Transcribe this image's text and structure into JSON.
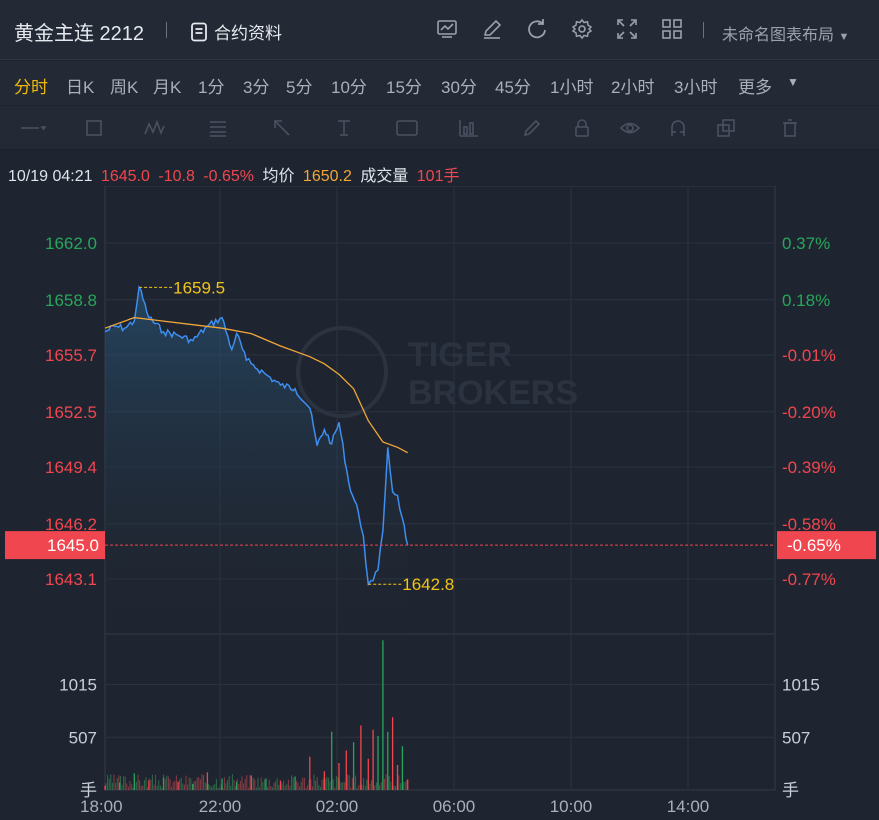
{
  "header": {
    "title": "黄金主连 2212",
    "contract_label": "合约资料",
    "layout_label": "未命名图表布局",
    "icons": [
      "chart-template-icon",
      "edit-icon",
      "refresh-icon",
      "settings-icon",
      "fullscreen-icon",
      "grid-layout-icon"
    ]
  },
  "timeframes": {
    "items": [
      "分时",
      "日K",
      "周K",
      "月K",
      "1分",
      "3分",
      "5分",
      "10分",
      "15分",
      "30分",
      "45分",
      "1小时",
      "2小时",
      "3小时",
      "更多"
    ],
    "active": "分时"
  },
  "drawing_tools": [
    "line-tool-icon",
    "rect-tool-icon",
    "wave-tool-icon",
    "fib-tool-icon",
    "arrow-tool-icon",
    "text-cursor-icon",
    "label-tool-icon",
    "indicator-icon",
    "pen-icon",
    "lock-icon",
    "eye-icon",
    "magnet-icon",
    "copy-icon",
    "trash-icon"
  ],
  "info_bar": {
    "datetime": "10/19 04:21",
    "price": "1645.0",
    "change": "-10.8",
    "change_pct": "-0.65%",
    "avg_label": "均价",
    "avg": "1650.2",
    "volume_label": "成交量",
    "volume": "101手"
  },
  "watermark": "TIGER BROKERS",
  "colors": {
    "up": "#26a65b",
    "down": "#f0464f",
    "price_line": "#3d8ef0",
    "avg_line": "#f0a63a",
    "annotation": "#f0c419",
    "background": "#1f2530"
  },
  "chart_data": {
    "type": "line",
    "x_labels": [
      "18:00",
      "22:00",
      "02:00",
      "06:00",
      "10:00",
      "14:00"
    ],
    "price_ticks": [
      "1662.0",
      "1658.8",
      "1655.7",
      "1652.5",
      "1649.4",
      "1646.2",
      "1643.1"
    ],
    "pct_ticks": [
      "0.37%",
      "0.18%",
      "-0.01%",
      "-0.20%",
      "-0.39%",
      "-0.58%",
      "-0.77%"
    ],
    "ylim": [
      1640.0,
      1665.2
    ],
    "prev_close": "1655.8",
    "current_price": "1645.0",
    "current_pct": "-0.65%",
    "high_label": "1659.5",
    "low_label": "1642.8",
    "volume_ticks": [
      "1015",
      "507"
    ],
    "volume_unit": "手",
    "volume_max": 1500,
    "series": [
      {
        "key": "price",
        "x": [
          "18:00",
          "18:20",
          "18:40",
          "19:00",
          "19:10",
          "19:30",
          "20:00",
          "20:30",
          "21:00",
          "21:30",
          "22:00",
          "22:20",
          "22:30",
          "22:50",
          "23:00",
          "23:30",
          "00:00",
          "00:30",
          "01:00",
          "01:15",
          "01:30",
          "01:45",
          "02:00",
          "02:20",
          "02:40",
          "02:50",
          "03:00",
          "03:10",
          "03:20",
          "03:30",
          "03:40",
          "03:50",
          "04:00",
          "04:10",
          "04:21"
        ],
        "values": [
          1657.0,
          1657.3,
          1657.2,
          1657.6,
          1659.5,
          1657.8,
          1657.0,
          1656.8,
          1656.5,
          1657.3,
          1657.8,
          1656.0,
          1656.9,
          1655.4,
          1655.2,
          1654.6,
          1654.0,
          1653.8,
          1652.7,
          1650.6,
          1651.5,
          1650.7,
          1651.9,
          1648.5,
          1646.8,
          1645.5,
          1642.8,
          1643.0,
          1643.6,
          1645.8,
          1650.5,
          1648.0,
          1647.8,
          1646.5,
          1645.0
        ]
      },
      {
        "key": "avg",
        "x": [
          "18:00",
          "19:00",
          "20:00",
          "21:00",
          "22:00",
          "23:00",
          "00:00",
          "01:00",
          "01:30",
          "02:00",
          "02:30",
          "03:00",
          "03:30",
          "04:00",
          "04:21"
        ],
        "values": [
          1657.2,
          1657.8,
          1657.6,
          1657.4,
          1657.2,
          1656.9,
          1656.2,
          1655.6,
          1655.2,
          1654.6,
          1653.8,
          1652.0,
          1650.8,
          1650.5,
          1650.2
        ]
      }
    ],
    "volume": {
      "x": [
        "18:00",
        "18:30",
        "19:00",
        "19:30",
        "20:00",
        "20:30",
        "21:00",
        "21:30",
        "22:00",
        "22:30",
        "23:00",
        "23:30",
        "00:00",
        "00:30",
        "01:00",
        "01:30",
        "01:45",
        "02:00",
        "02:15",
        "02:30",
        "02:45",
        "03:00",
        "03:10",
        "03:20",
        "03:30",
        "03:40",
        "03:50",
        "04:00",
        "04:10",
        "04:21"
      ],
      "values": [
        40,
        70,
        160,
        90,
        120,
        80,
        60,
        170,
        110,
        80,
        140,
        110,
        90,
        130,
        320,
        180,
        560,
        260,
        380,
        460,
        620,
        300,
        580,
        520,
        1440,
        560,
        700,
        240,
        420,
        101
      ],
      "up": [
        false,
        true,
        true,
        false,
        true,
        false,
        true,
        false,
        true,
        true,
        false,
        true,
        false,
        true,
        false,
        false,
        true,
        false,
        false,
        true,
        false,
        false,
        false,
        true,
        true,
        true,
        false,
        false,
        true,
        false
      ]
    }
  }
}
